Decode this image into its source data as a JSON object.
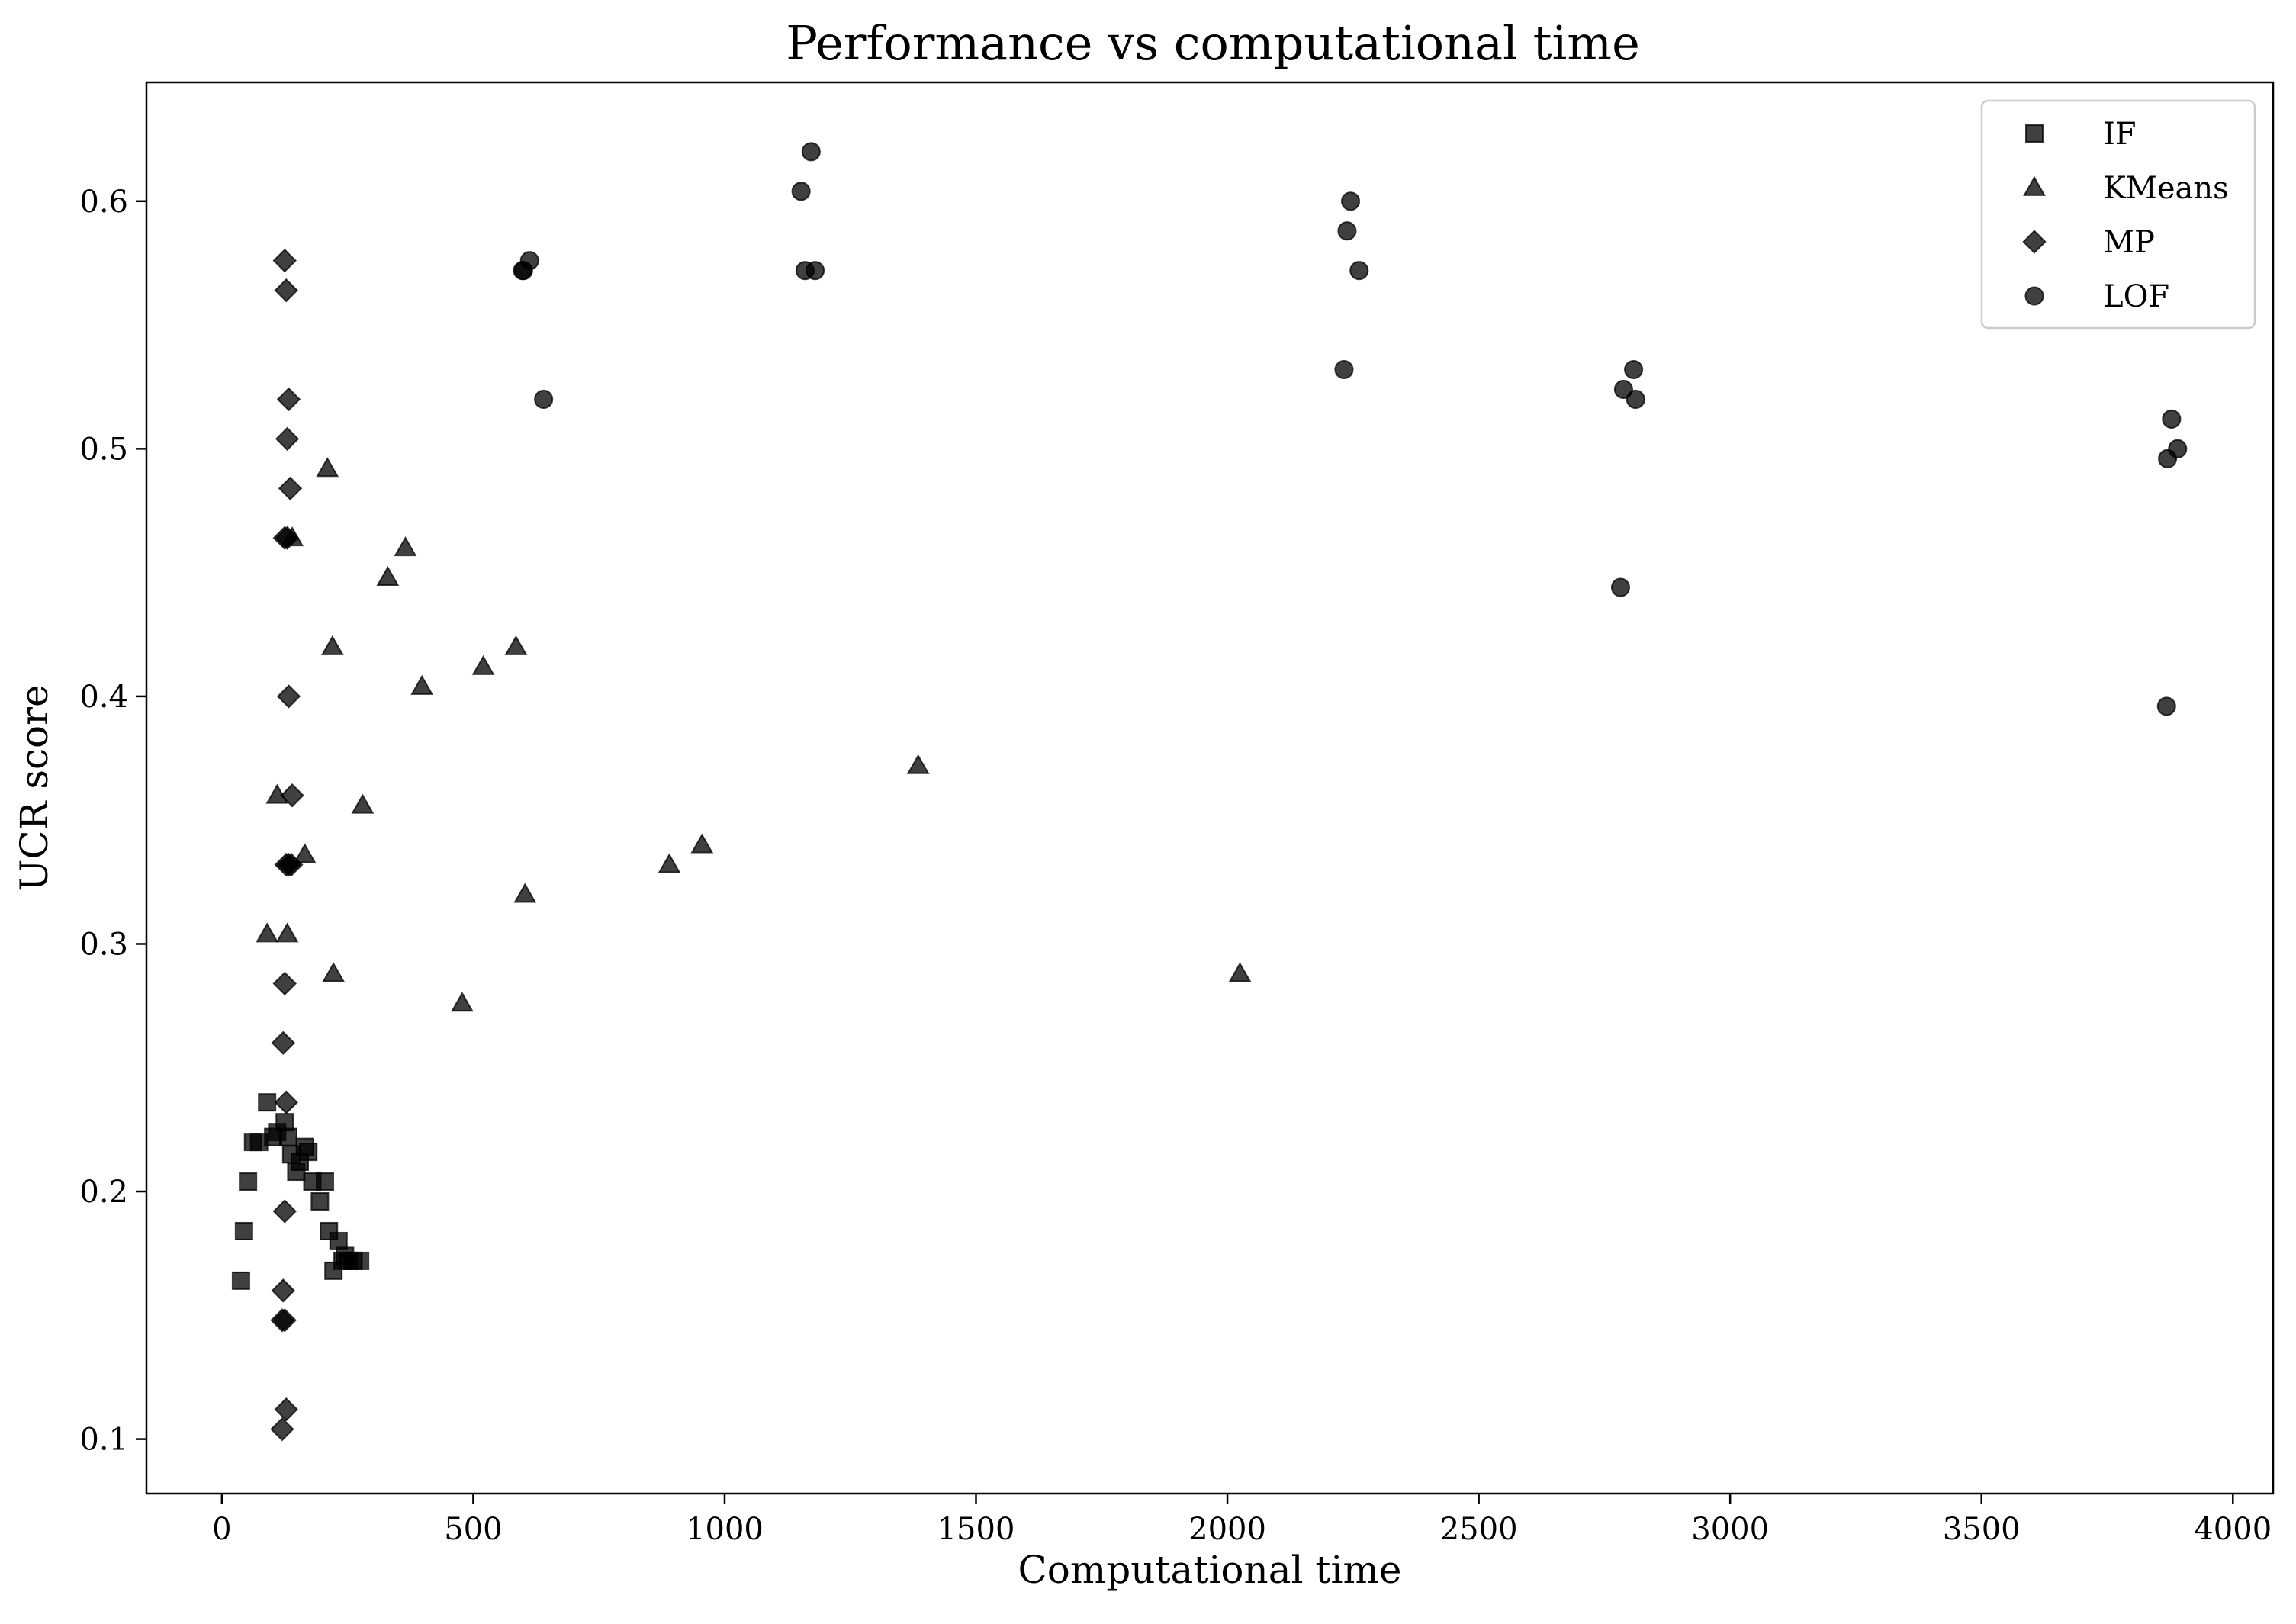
{
  "chart_data": {
    "type": "scatter",
    "title": "Performance vs computational time",
    "xlabel": "Computational time",
    "ylabel": "UCR score",
    "xlim": [
      -150,
      4080
    ],
    "ylim": [
      0.078,
      0.648
    ],
    "xticks": [
      0,
      500,
      1000,
      1500,
      2000,
      2500,
      3000,
      3500,
      4000
    ],
    "yticks": [
      0.1,
      0.2,
      0.3,
      0.4,
      0.5,
      0.6
    ],
    "xtick_labels": [
      "0",
      "500",
      "1000",
      "1500",
      "2000",
      "2500",
      "3000",
      "3500",
      "4000"
    ],
    "ytick_labels": [
      "0.1",
      "0.2",
      "0.3",
      "0.4",
      "0.5",
      "0.6"
    ],
    "grid": false,
    "legend_position": "top-right",
    "marker_color": "#000000",
    "marker_opacity": 0.75,
    "series": [
      {
        "name": "IF",
        "marker": "square",
        "x": [
          38,
          44,
          52,
          62,
          74,
          90,
          102,
          110,
          125,
          132,
          138,
          148,
          155,
          165,
          172,
          180,
          195,
          205,
          213,
          222,
          232,
          240,
          245,
          252,
          262,
          275
        ],
        "y": [
          0.164,
          0.184,
          0.204,
          0.22,
          0.22,
          0.236,
          0.222,
          0.224,
          0.228,
          0.222,
          0.215,
          0.208,
          0.212,
          0.218,
          0.216,
          0.204,
          0.196,
          0.204,
          0.184,
          0.168,
          0.18,
          0.172,
          0.174,
          0.172,
          0.172,
          0.172
        ]
      },
      {
        "name": "KMeans",
        "marker": "triangle",
        "x": [
          90,
          110,
          130,
          140,
          165,
          210,
          220,
          222,
          280,
          330,
          365,
          398,
          478,
          520,
          585,
          603,
          890,
          955,
          1385,
          2025
        ],
        "y": [
          0.304,
          0.36,
          0.304,
          0.464,
          0.336,
          0.492,
          0.42,
          0.288,
          0.356,
          0.448,
          0.46,
          0.404,
          0.276,
          0.412,
          0.42,
          0.32,
          0.332,
          0.34,
          0.372,
          0.288
        ]
      },
      {
        "name": "MP",
        "marker": "diamond",
        "x": [
          125,
          128,
          133,
          130,
          136,
          130,
          133,
          140,
          128,
          133,
          138,
          125,
          122,
          128,
          125,
          122,
          125,
          120,
          128,
          120,
          125
        ],
        "y": [
          0.576,
          0.564,
          0.52,
          0.504,
          0.484,
          0.464,
          0.4,
          0.36,
          0.332,
          0.332,
          0.332,
          0.284,
          0.26,
          0.236,
          0.192,
          0.16,
          0.148,
          0.148,
          0.112,
          0.104,
          0.464
        ]
      },
      {
        "name": "LOF",
        "marker": "circle",
        "x": [
          598,
          600,
          612,
          640,
          1152,
          1160,
          1172,
          1180,
          2232,
          2238,
          2245,
          2262,
          2782,
          2788,
          2808,
          2812,
          3868,
          3870,
          3878,
          3890
        ],
        "y": [
          0.572,
          0.572,
          0.576,
          0.52,
          0.604,
          0.572,
          0.62,
          0.572,
          0.532,
          0.588,
          0.6,
          0.572,
          0.444,
          0.524,
          0.532,
          0.52,
          0.396,
          0.496,
          0.512,
          0.5
        ]
      }
    ]
  }
}
